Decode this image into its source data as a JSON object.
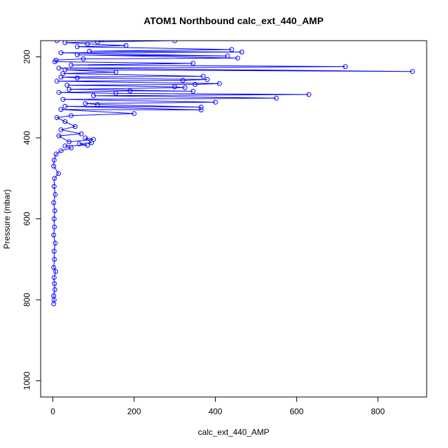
{
  "chart_data": {
    "type": "line",
    "title": "ATOM1 Northbound calc_ext_440_AMP",
    "xlabel": "calc_ext_440_AMP",
    "ylabel": "Pressure (mbar)",
    "xlim": [
      -30,
      920
    ],
    "ylim": [
      1040,
      160
    ],
    "y_reversed": true,
    "x_ticks": [
      0,
      200,
      400,
      600,
      800
    ],
    "y_ticks": [
      200,
      400,
      600,
      800,
      1000
    ],
    "grid": false,
    "markers": "open-circle",
    "series": [
      {
        "color": "#0000ff",
        "points": [
          [
            10,
            160
          ],
          [
            120,
            158
          ],
          [
            300,
            160
          ],
          [
            110,
            163
          ],
          [
            30,
            165
          ],
          [
            85,
            168
          ],
          [
            180,
            172
          ],
          [
            60,
            175
          ],
          [
            440,
            182
          ],
          [
            90,
            186
          ],
          [
            465,
            188
          ],
          [
            20,
            190
          ],
          [
            430,
            198
          ],
          [
            60,
            195
          ],
          [
            455,
            203
          ],
          [
            75,
            205
          ],
          [
            8,
            208
          ],
          [
            5,
            212
          ],
          [
            345,
            216
          ],
          [
            45,
            220
          ],
          [
            720,
            224
          ],
          [
            15,
            228
          ],
          [
            885,
            236
          ],
          [
            30,
            232
          ],
          [
            155,
            238
          ],
          [
            25,
            241
          ],
          [
            370,
            248
          ],
          [
            20,
            250
          ],
          [
            60,
            252
          ],
          [
            380,
            256
          ],
          [
            320,
            258
          ],
          [
            10,
            260
          ],
          [
            410,
            266
          ],
          [
            350,
            268
          ],
          [
            35,
            270
          ],
          [
            300,
            274
          ],
          [
            325,
            276
          ],
          [
            40,
            280
          ],
          [
            345,
            285
          ],
          [
            190,
            284
          ],
          [
            15,
            288
          ],
          [
            155,
            290
          ],
          [
            630,
            293
          ],
          [
            100,
            296
          ],
          [
            550,
            302
          ],
          [
            25,
            305
          ],
          [
            400,
            312
          ],
          [
            80,
            315
          ],
          [
            110,
            318
          ],
          [
            365,
            324
          ],
          [
            30,
            322
          ],
          [
            365,
            331
          ],
          [
            20,
            330
          ],
          [
            200,
            340
          ],
          [
            45,
            345
          ],
          [
            10,
            350
          ],
          [
            30,
            360
          ],
          [
            55,
            372
          ],
          [
            20,
            380
          ],
          [
            70,
            390
          ],
          [
            15,
            395
          ],
          [
            40,
            410
          ],
          [
            100,
            404
          ],
          [
            80,
            400
          ],
          [
            95,
            412
          ],
          [
            65,
            415
          ],
          [
            85,
            418
          ],
          [
            30,
            420
          ],
          [
            45,
            425
          ],
          [
            20,
            432
          ],
          [
            8,
            440
          ],
          [
            3,
            455
          ],
          [
            2,
            470
          ],
          [
            14,
            488
          ],
          [
            4,
            500
          ],
          [
            3,
            520
          ],
          [
            6,
            540
          ],
          [
            2,
            560
          ],
          [
            5,
            580
          ],
          [
            3,
            600
          ],
          [
            4,
            620
          ],
          [
            2,
            640
          ],
          [
            6,
            660
          ],
          [
            3,
            680
          ],
          [
            4,
            700
          ],
          [
            2,
            720
          ],
          [
            7,
            730
          ],
          [
            3,
            745
          ],
          [
            4,
            760
          ],
          [
            5,
            775
          ],
          [
            2,
            790
          ],
          [
            3,
            800
          ],
          [
            2,
            810
          ]
        ]
      }
    ]
  }
}
